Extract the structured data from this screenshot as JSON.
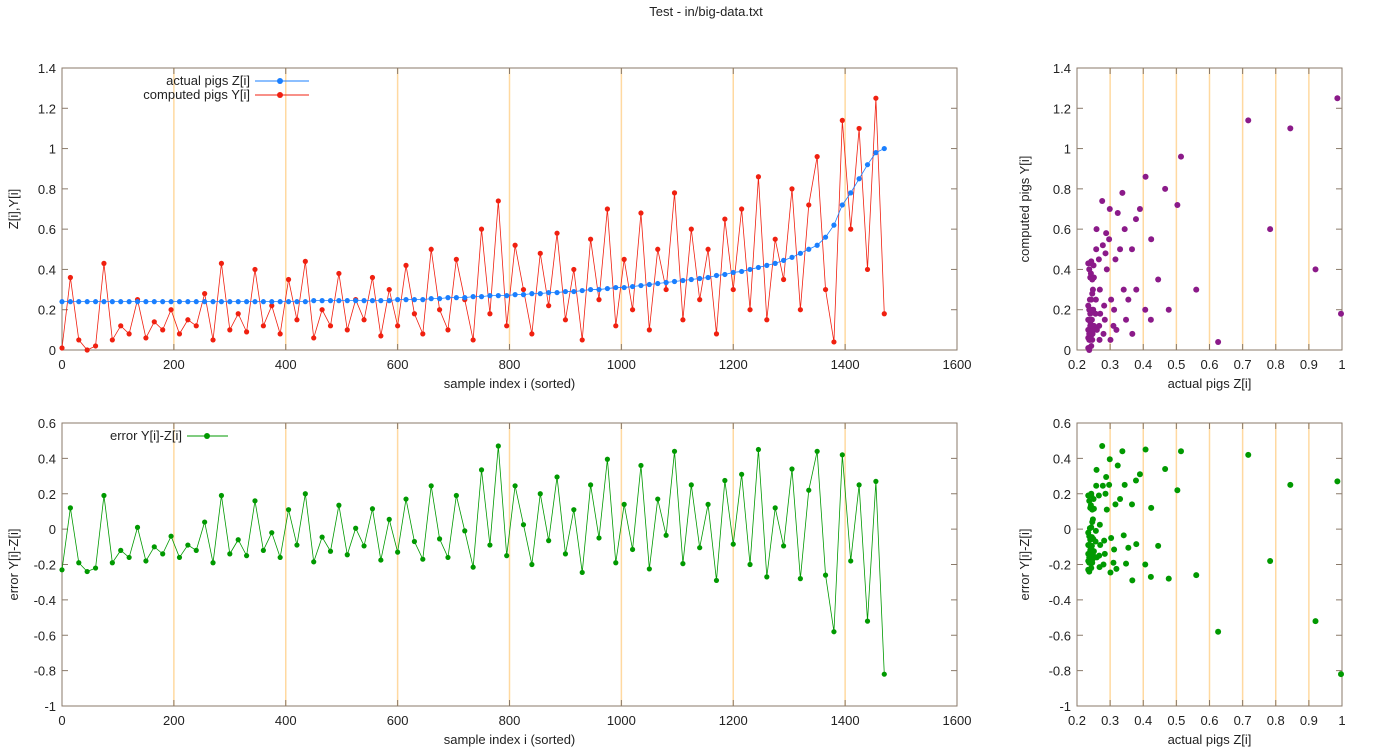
{
  "title": "Test - in/big-data.txt",
  "colors": {
    "actual": "#1a7fff",
    "computed": "#f02010",
    "error": "#009900",
    "scatter": "#8b1a89",
    "grid": "#ffd9a0",
    "border": "#8a7a6a"
  },
  "chart_data": [
    {
      "id": "series-plot",
      "type": "line",
      "xlabel": "sample index i (sorted)",
      "ylabel": "Z[i],Y[i]",
      "xlim": [
        0,
        1600
      ],
      "ylim": [
        0,
        1.4
      ],
      "xticks": [
        "0",
        "200",
        "400",
        "600",
        "800",
        "1000",
        "1200",
        "1400",
        "1600"
      ],
      "yticks": [
        "0",
        "0.2",
        "0.4",
        "0.6",
        "0.8",
        "1",
        "1.2",
        "1.4"
      ],
      "grid": "vertical",
      "legend_placement": "top-left",
      "series": [
        {
          "name": "actual pigs Z[i]",
          "key": "z",
          "color_key": "actual"
        },
        {
          "name": "computed pigs Y[i]",
          "key": "y",
          "color_key": "computed"
        }
      ]
    },
    {
      "id": "scatter-plot",
      "type": "scatter",
      "xlabel": "actual pigs Z[i]",
      "ylabel": "computed pigs Y[i]",
      "xlim": [
        0.2,
        1.0
      ],
      "ylim": [
        0,
        1.4
      ],
      "xticks": [
        "0.2",
        "0.3",
        "0.4",
        "0.5",
        "0.6",
        "0.7",
        "0.8",
        "0.9",
        "1"
      ],
      "yticks": [
        "0",
        "0.2",
        "0.4",
        "0.6",
        "0.8",
        "1",
        "1.2",
        "1.4"
      ],
      "grid": "vertical"
    },
    {
      "id": "error-plot",
      "type": "line",
      "xlabel": "sample index i (sorted)",
      "ylabel": "error Y[i]-Z[i]",
      "xlim": [
        0,
        1600
      ],
      "ylim": [
        -1,
        0.6
      ],
      "xticks": [
        "0",
        "200",
        "400",
        "600",
        "800",
        "1000",
        "1200",
        "1400",
        "1600"
      ],
      "yticks": [
        "-1",
        "-0.8",
        "-0.6",
        "-0.4",
        "-0.2",
        "0",
        "0.2",
        "0.4",
        "0.6"
      ],
      "grid": "vertical",
      "legend_placement": "top-left",
      "series": [
        {
          "name": "error Y[i]-Z[i]",
          "key": "err",
          "color_key": "error"
        }
      ]
    },
    {
      "id": "error-scatter-plot",
      "type": "scatter",
      "xlabel": "actual pigs Z[i]",
      "ylabel": "error Y[i]-Z[i]",
      "xlim": [
        0.2,
        1.0
      ],
      "ylim": [
        -1,
        0.6
      ],
      "xticks": [
        "0.2",
        "0.3",
        "0.4",
        "0.5",
        "0.6",
        "0.7",
        "0.8",
        "0.9",
        "1"
      ],
      "yticks": [
        "-1",
        "-0.8",
        "-0.6",
        "-0.4",
        "-0.2",
        "0",
        "0.2",
        "0.4",
        "0.6"
      ],
      "grid": "vertical"
    }
  ],
  "samples": {
    "i": [
      0,
      15,
      30,
      45,
      60,
      75,
      90,
      105,
      120,
      135,
      150,
      165,
      180,
      195,
      210,
      225,
      240,
      255,
      270,
      285,
      300,
      315,
      330,
      345,
      360,
      375,
      390,
      405,
      420,
      435,
      450,
      465,
      480,
      495,
      510,
      525,
      540,
      555,
      570,
      585,
      600,
      615,
      630,
      645,
      660,
      675,
      690,
      705,
      720,
      735,
      750,
      765,
      780,
      795,
      810,
      825,
      840,
      855,
      870,
      885,
      900,
      915,
      930,
      945,
      960,
      975,
      990,
      1005,
      1020,
      1035,
      1050,
      1065,
      1080,
      1095,
      1110,
      1125,
      1140,
      1155,
      1170,
      1185,
      1200,
      1215,
      1230,
      1245,
      1260,
      1275,
      1290,
      1305,
      1320,
      1335,
      1350,
      1365,
      1380,
      1395,
      1410,
      1425,
      1440,
      1455,
      1470
    ],
    "z": [
      0.24,
      0.24,
      0.24,
      0.24,
      0.24,
      0.24,
      0.24,
      0.24,
      0.24,
      0.24,
      0.24,
      0.24,
      0.24,
      0.24,
      0.24,
      0.24,
      0.24,
      0.24,
      0.24,
      0.24,
      0.24,
      0.24,
      0.24,
      0.24,
      0.24,
      0.24,
      0.24,
      0.24,
      0.24,
      0.24,
      0.245,
      0.245,
      0.245,
      0.245,
      0.245,
      0.245,
      0.245,
      0.245,
      0.245,
      0.245,
      0.25,
      0.25,
      0.25,
      0.25,
      0.255,
      0.255,
      0.26,
      0.26,
      0.26,
      0.265,
      0.265,
      0.27,
      0.27,
      0.27,
      0.275,
      0.275,
      0.28,
      0.28,
      0.285,
      0.285,
      0.29,
      0.29,
      0.295,
      0.3,
      0.3,
      0.305,
      0.31,
      0.31,
      0.315,
      0.32,
      0.325,
      0.33,
      0.335,
      0.34,
      0.345,
      0.35,
      0.355,
      0.36,
      0.37,
      0.375,
      0.385,
      0.39,
      0.4,
      0.41,
      0.42,
      0.43,
      0.445,
      0.46,
      0.48,
      0.5,
      0.52,
      0.56,
      0.62,
      0.72,
      0.78,
      0.85,
      0.92,
      0.98,
      1.0
    ],
    "y": [
      0.01,
      0.36,
      0.05,
      0.0,
      0.02,
      0.43,
      0.05,
      0.12,
      0.08,
      0.25,
      0.06,
      0.14,
      0.1,
      0.2,
      0.08,
      0.15,
      0.12,
      0.28,
      0.05,
      0.43,
      0.1,
      0.18,
      0.09,
      0.4,
      0.12,
      0.22,
      0.08,
      0.35,
      0.15,
      0.44,
      0.06,
      0.2,
      0.12,
      0.38,
      0.1,
      0.25,
      0.15,
      0.36,
      0.07,
      0.3,
      0.12,
      0.42,
      0.18,
      0.08,
      0.5,
      0.2,
      0.1,
      0.45,
      0.25,
      0.05,
      0.6,
      0.18,
      0.74,
      0.12,
      0.52,
      0.3,
      0.08,
      0.48,
      0.22,
      0.58,
      0.15,
      0.4,
      0.05,
      0.55,
      0.25,
      0.7,
      0.12,
      0.45,
      0.2,
      0.68,
      0.1,
      0.5,
      0.3,
      0.78,
      0.15,
      0.6,
      0.25,
      0.5,
      0.08,
      0.65,
      0.3,
      0.7,
      0.2,
      0.86,
      0.15,
      0.55,
      0.35,
      0.8,
      0.2,
      0.72,
      0.96,
      0.3,
      0.04,
      1.14,
      0.6,
      1.1,
      0.4,
      1.25,
      0.18
    ]
  }
}
